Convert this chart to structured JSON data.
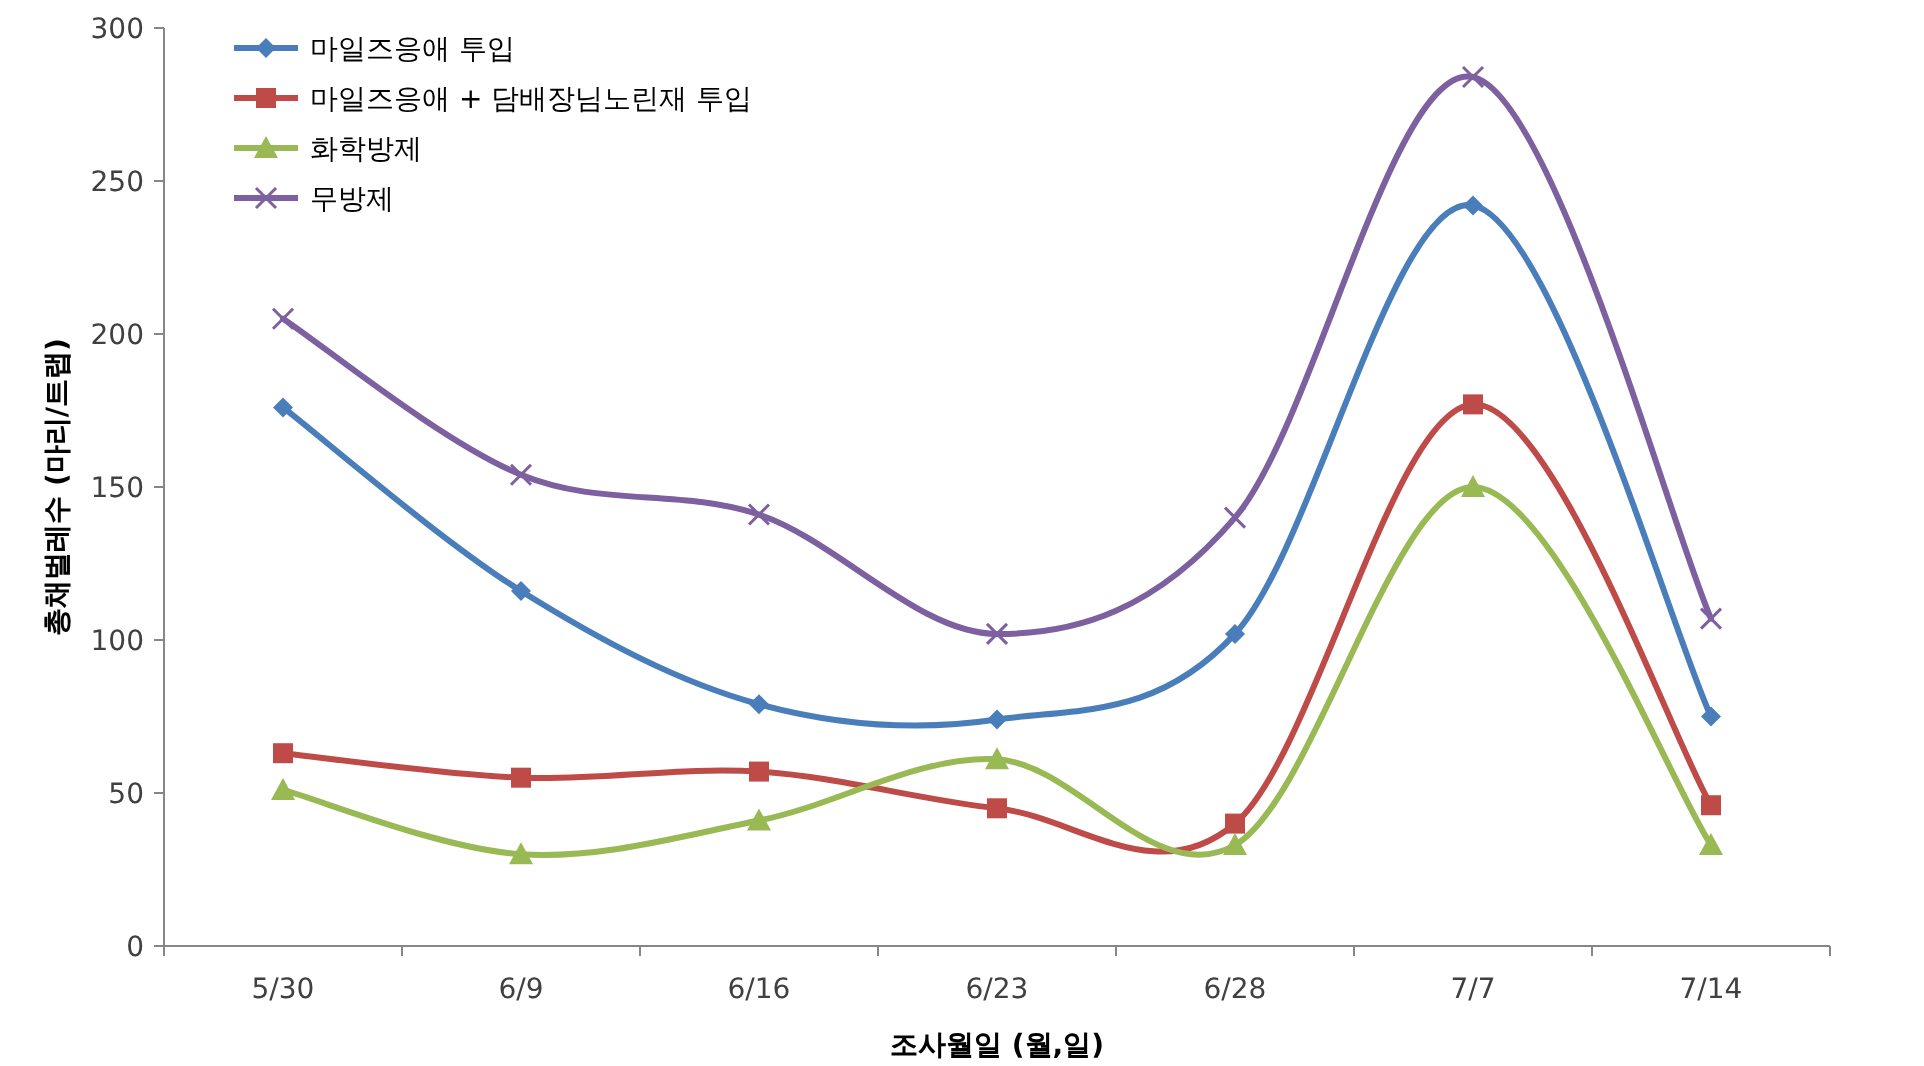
{
  "chart_data": {
    "type": "line",
    "xlabel": "조사월일 (월,일)",
    "ylabel": "총채벌레수 (마리/트랩)",
    "categories": [
      "5/30",
      "6/9",
      "6/16",
      "6/23",
      "6/28",
      "7/7",
      "7/14"
    ],
    "ylim": [
      0,
      300
    ],
    "yticks": [
      0,
      50,
      100,
      150,
      200,
      250,
      300
    ],
    "grid": false,
    "legend": "top left",
    "line_style": "solid",
    "series": [
      {
        "name": "마일즈응애 투입",
        "color": "#4a7ebb",
        "marker": "diamond",
        "values": [
          176,
          116,
          79,
          74,
          102,
          242,
          75
        ]
      },
      {
        "name": "마일즈응애 + 담배장님노린재 투입",
        "color": "#be4b48",
        "marker": "square",
        "values": [
          63,
          55,
          57,
          45,
          40,
          177,
          46
        ]
      },
      {
        "name": "화학방제",
        "color": "#98b954",
        "marker": "triangle",
        "values": [
          51,
          30,
          41,
          61,
          33,
          150,
          33
        ]
      },
      {
        "name": "무방제",
        "color": "#7d60a0",
        "marker": "cross",
        "values": [
          205,
          154,
          141,
          102,
          140,
          284,
          107
        ]
      }
    ]
  }
}
